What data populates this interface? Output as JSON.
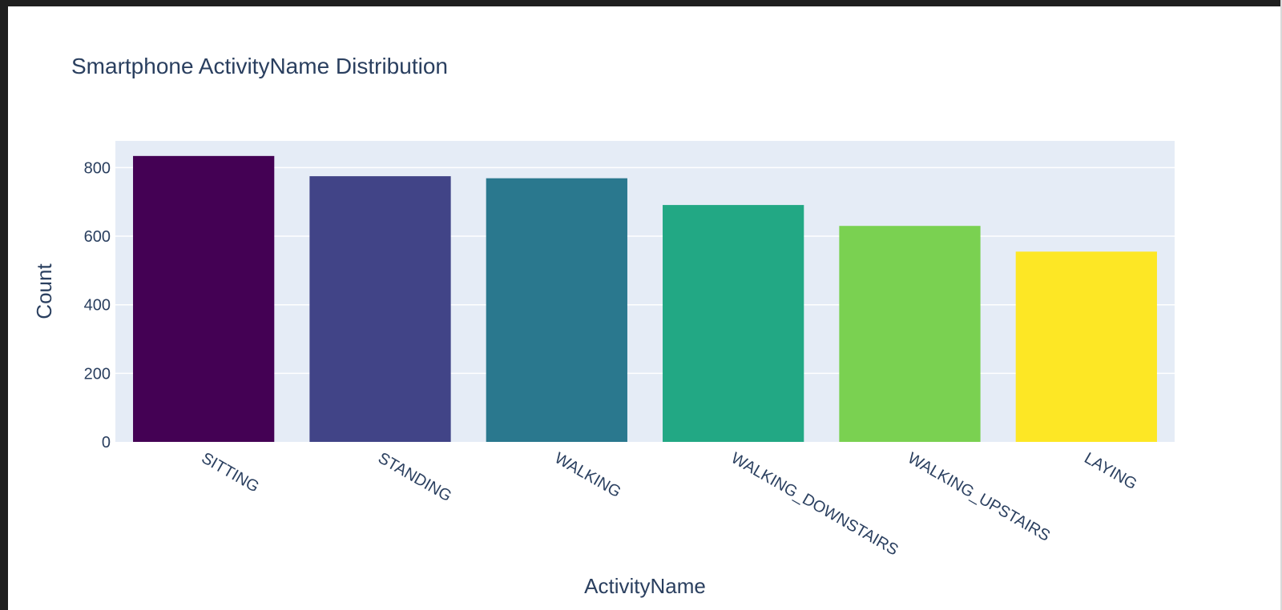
{
  "chart_data": {
    "type": "bar",
    "title": "Smartphone ActivityName Distribution",
    "xlabel": "ActivityName",
    "ylabel": "Count",
    "categories": [
      "SITTING",
      "STANDING",
      "WALKING",
      "WALKING_DOWNSTAIRS",
      "WALKING_UPSTAIRS",
      "LAYING"
    ],
    "values": [
      834,
      775,
      769,
      691,
      630,
      555
    ],
    "bar_colors": [
      "#440154",
      "#414487",
      "#2A788E",
      "#22A884",
      "#7AD151",
      "#FDE725"
    ],
    "yticks": [
      0,
      200,
      400,
      600,
      800
    ],
    "ylim": [
      0,
      878
    ],
    "grid": true,
    "legend": "none",
    "plot_background": "#E5ECF6",
    "text_color": "#2A3F5F"
  }
}
